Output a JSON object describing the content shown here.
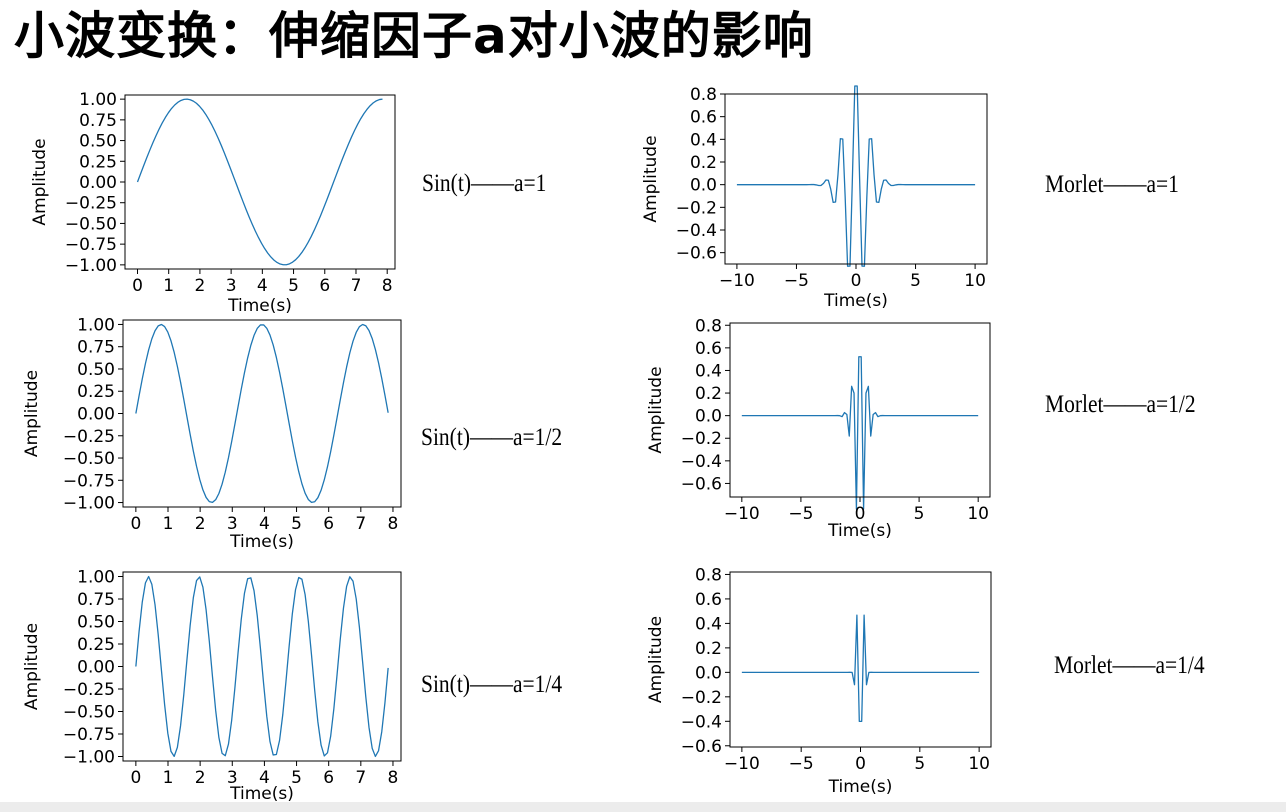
{
  "slide": {
    "title": "小波变换：伸缩因子a对小波的影响"
  },
  "colors": {
    "series": "#1f77b4"
  },
  "labels": {
    "sin_a1": "Sin(t)——a=1",
    "sin_a2": "Sin(t)——a=1/2",
    "sin_a4": "Sin(t)——a=1/4",
    "morlet_a1": "Morlet——a=1",
    "morlet_a2": "Morlet——a=1/2",
    "morlet_a4": "Morlet——a=1/4"
  },
  "chart_data": [
    {
      "id": "sin-a1",
      "type": "line",
      "function": "sin(t/a)",
      "a": 1,
      "xlabel": "Time(s)",
      "ylabel": "Amplitude",
      "xlim": [
        -0.4,
        8.25
      ],
      "ylim": [
        -1.05,
        1.05
      ],
      "x_range": [
        0,
        7.85
      ],
      "samples": 80,
      "xticks": [
        0,
        1,
        2,
        3,
        4,
        5,
        6,
        7,
        8
      ],
      "xtick_labels": [
        "0",
        "1",
        "2",
        "3",
        "4",
        "5",
        "6",
        "7",
        "8"
      ],
      "yticks": [
        1.0,
        0.75,
        0.5,
        0.25,
        0.0,
        -0.25,
        -0.5,
        -0.75,
        -1.0
      ],
      "ytick_labels": [
        "1.00",
        "0.75",
        "0.50",
        "0.25",
        "0.00",
        "−0.25",
        "−0.50",
        "−0.75",
        "−1.00"
      ],
      "grid": false
    },
    {
      "id": "sin-a2",
      "type": "line",
      "function": "sin(t/a)",
      "a": 0.5,
      "xlabel": "Time(s)",
      "ylabel": "Amplitude",
      "xlim": [
        -0.4,
        8.25
      ],
      "ylim": [
        -1.05,
        1.05
      ],
      "x_range": [
        0,
        7.85
      ],
      "samples": 80,
      "xticks": [
        0,
        1,
        2,
        3,
        4,
        5,
        6,
        7,
        8
      ],
      "xtick_labels": [
        "0",
        "1",
        "2",
        "3",
        "4",
        "5",
        "6",
        "7",
        "8"
      ],
      "yticks": [
        1.0,
        0.75,
        0.5,
        0.25,
        0.0,
        -0.25,
        -0.5,
        -0.75,
        -1.0
      ],
      "ytick_labels": [
        "1.00",
        "0.75",
        "0.50",
        "0.25",
        "0.00",
        "−0.25",
        "−0.50",
        "−0.75",
        "−1.00"
      ],
      "grid": false
    },
    {
      "id": "sin-a4",
      "type": "line",
      "function": "sin(t/a)",
      "a": 0.25,
      "xlabel": "Time(s)",
      "ylabel": "Amplitude",
      "xlim": [
        -0.4,
        8.25
      ],
      "ylim": [
        -1.05,
        1.05
      ],
      "x_range": [
        0,
        7.85
      ],
      "samples": 80,
      "xticks": [
        0,
        1,
        2,
        3,
        4,
        5,
        6,
        7,
        8
      ],
      "xtick_labels": [
        "0",
        "1",
        "2",
        "3",
        "4",
        "5",
        "6",
        "7",
        "8"
      ],
      "yticks": [
        1.0,
        0.75,
        0.5,
        0.25,
        0.0,
        -0.25,
        -0.5,
        -0.75,
        -1.0
      ],
      "ytick_labels": [
        "1.00",
        "0.75",
        "0.50",
        "0.25",
        "0.00",
        "−0.25",
        "−0.50",
        "−0.75",
        "−1.00"
      ],
      "grid": false
    },
    {
      "id": "morlet-a1",
      "type": "line",
      "function": "exp(-(t/a)^2/2)*cos(5t/a)",
      "a": 1,
      "xlabel": "Time(s)",
      "ylabel": "Amplitude",
      "xlim": [
        -11,
        11
      ],
      "ylim": [
        -0.7,
        0.8
      ],
      "x_range": [
        -10,
        10
      ],
      "samples": 100,
      "xticks": [
        -10,
        -5,
        0,
        5,
        10
      ],
      "xtick_labels": [
        "−10",
        "−5",
        "0",
        "5",
        "10"
      ],
      "yticks": [
        0.8,
        0.6,
        0.4,
        0.2,
        0.0,
        -0.2,
        -0.4,
        -0.6
      ],
      "ytick_labels": [
        "0.8",
        "0.6",
        "0.4",
        "0.2",
        "0.0",
        "−0.2",
        "−0.4",
        "−0.6"
      ],
      "grid": false
    },
    {
      "id": "morlet-a2",
      "type": "line",
      "function": "exp(-(t/a)^2/2)*cos(5t/a)",
      "a": 0.5,
      "xlabel": "Time(s)",
      "ylabel": "Amplitude",
      "xlim": [
        -11,
        11
      ],
      "ylim": [
        -0.72,
        0.82
      ],
      "x_range": [
        -10,
        10
      ],
      "samples": 100,
      "xticks": [
        -10,
        -5,
        0,
        5,
        10
      ],
      "xtick_labels": [
        "−10",
        "−5",
        "0",
        "5",
        "10"
      ],
      "yticks": [
        0.8,
        0.6,
        0.4,
        0.2,
        0.0,
        -0.2,
        -0.4,
        -0.6
      ],
      "ytick_labels": [
        "0.8",
        "0.6",
        "0.4",
        "0.2",
        "0.0",
        "−0.2",
        "−0.4",
        "−0.6"
      ],
      "grid": false
    },
    {
      "id": "morlet-a4",
      "type": "line",
      "function": "exp(-(t/a)^2/2)*cos(5t/a)",
      "a": 0.25,
      "xlabel": "Time(s)",
      "ylabel": "Amplitude",
      "xlim": [
        -11,
        11
      ],
      "ylim": [
        -0.61,
        0.82
      ],
      "x_range": [
        -10,
        10
      ],
      "samples": 100,
      "xticks": [
        -10,
        -5,
        0,
        5,
        10
      ],
      "xtick_labels": [
        "−10",
        "−5",
        "0",
        "5",
        "10"
      ],
      "yticks": [
        0.8,
        0.6,
        0.4,
        0.2,
        0.0,
        -0.2,
        -0.4,
        -0.6
      ],
      "ytick_labels": [
        "0.8",
        "0.6",
        "0.4",
        "0.2",
        "0.0",
        "−0.2",
        "−0.4",
        "−0.6"
      ],
      "grid": false
    }
  ]
}
